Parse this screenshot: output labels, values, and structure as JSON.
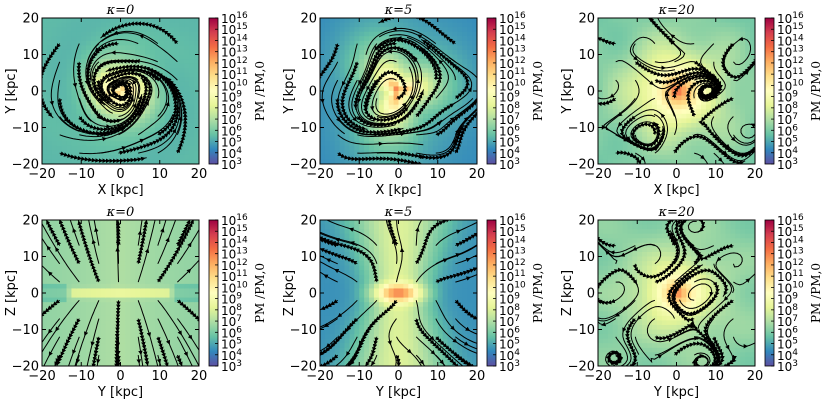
{
  "chart_data": {
    "type": "heatmap",
    "colormap": "Spectral_r (log scale)",
    "colorbar": {
      "label": "P_M / P_M,0",
      "label_display": "PM /PM,0",
      "ticks": [
        "10^3",
        "10^4",
        "10^5",
        "10^6",
        "10^7",
        "10^8",
        "10^9",
        "10^10",
        "10^11",
        "10^12",
        "10^13",
        "10^14",
        "10^15",
        "10^16"
      ],
      "range_log10": [
        3,
        16
      ]
    },
    "overlay": "magnetic field streamlines (black, with arrows)",
    "panels": [
      {
        "id": "face-kappa0",
        "title": "κ=0",
        "xlabel": "X [kpc]",
        "ylabel": "Y [kpc]",
        "xlim": [
          -20,
          20
        ],
        "ylim": [
          -20,
          20
        ],
        "xticks": [
          "−20",
          "−10",
          "0",
          "10",
          "20"
        ],
        "yticks": [
          "−20",
          "−10",
          "0",
          "10",
          "20"
        ],
        "peak_log10": 10.5,
        "morphology": "spiral"
      },
      {
        "id": "face-kappa5",
        "title": "κ=5",
        "xlabel": "X [kpc]",
        "ylabel": "Y [kpc]",
        "xlim": [
          -20,
          20
        ],
        "ylim": [
          -20,
          20
        ],
        "xticks": [
          "−20",
          "−10",
          "0",
          "10",
          "20"
        ],
        "yticks": [
          "−20",
          "−10",
          "0",
          "10",
          "20"
        ],
        "peak_log10": 12.5,
        "morphology": "disrupted"
      },
      {
        "id": "face-kappa20",
        "title": "κ=20",
        "xlabel": "X [kpc]",
        "ylabel": "Y [kpc]",
        "xlim": [
          -20,
          20
        ],
        "ylim": [
          -20,
          20
        ],
        "xticks": [
          "−20",
          "−10",
          "0",
          "10",
          "20"
        ],
        "yticks": [
          "−20",
          "−10",
          "0",
          "10",
          "20"
        ],
        "peak_log10": 13.8,
        "morphology": "turbulent"
      },
      {
        "id": "edge-kappa0",
        "title": "κ=0",
        "xlabel": "Y [kpc]",
        "ylabel": "Z [kpc]",
        "xlim": [
          -20,
          20
        ],
        "ylim": [
          -20,
          20
        ],
        "xticks": [
          "−20",
          "−10",
          "0",
          "10",
          "20"
        ],
        "yticks": [
          "−20",
          "−10",
          "0",
          "10",
          "20"
        ],
        "peak_log10": 9.0,
        "morphology": "thin disk, outflow"
      },
      {
        "id": "edge-kappa5",
        "title": "κ=5",
        "xlabel": "Y [kpc]",
        "ylabel": "Z [kpc]",
        "xlim": [
          -20,
          20
        ],
        "ylim": [
          -20,
          20
        ],
        "xticks": [
          "−20",
          "−10",
          "0",
          "10",
          "20"
        ],
        "yticks": [
          "−20",
          "−10",
          "0",
          "10",
          "20"
        ],
        "peak_log10": 13.0,
        "morphology": "bipolar"
      },
      {
        "id": "edge-kappa20",
        "title": "κ=20",
        "xlabel": "Y [kpc]",
        "ylabel": "Z [kpc]",
        "xlim": [
          -20,
          20
        ],
        "ylim": [
          -20,
          20
        ],
        "xticks": [
          "−20",
          "−10",
          "0",
          "10",
          "20"
        ],
        "yticks": [
          "−20",
          "−10",
          "0",
          "10",
          "20"
        ],
        "peak_log10": 13.5,
        "morphology": "turbulent, extended"
      }
    ]
  }
}
